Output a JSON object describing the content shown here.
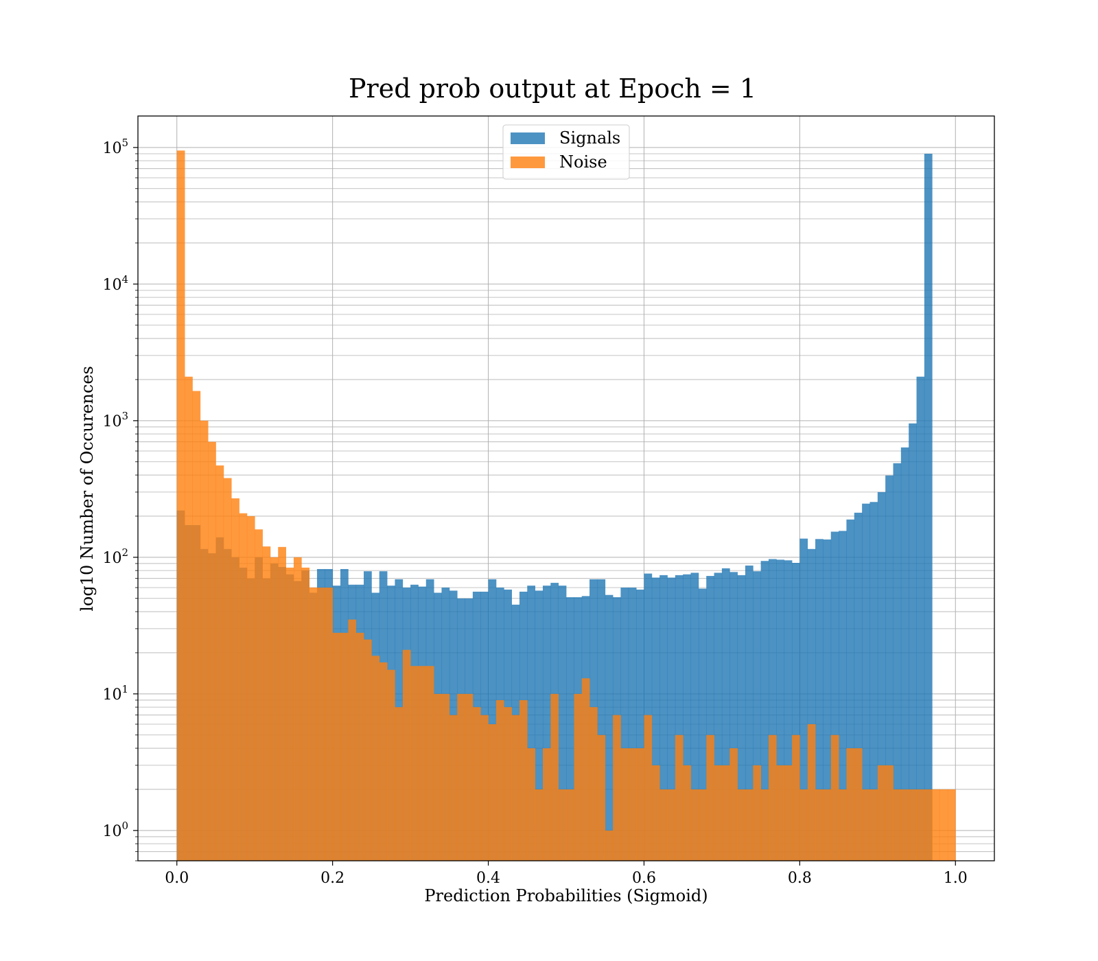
{
  "chart_data": {
    "type": "bar",
    "title": "Pred prob output at Epoch = 1",
    "xlabel": "Prediction Probabilities (Sigmoid)",
    "ylabel": "log10 Number of Occurences",
    "xscale": "linear",
    "yscale": "log",
    "xlim": [
      -0.05,
      1.05
    ],
    "ylim": [
      0.6,
      170000
    ],
    "xticks": [
      0.0,
      0.2,
      0.4,
      0.6,
      0.8,
      1.0
    ],
    "xtick_labels": [
      "0.0",
      "0.2",
      "0.4",
      "0.6",
      "0.8",
      "1.0"
    ],
    "yticks": [
      1,
      10,
      100,
      1000,
      10000,
      100000
    ],
    "ytick_labels": [
      {
        "base": "10",
        "exp": "0"
      },
      {
        "base": "10",
        "exp": "1"
      },
      {
        "base": "10",
        "exp": "2"
      },
      {
        "base": "10",
        "exp": "3"
      },
      {
        "base": "10",
        "exp": "4"
      },
      {
        "base": "10",
        "exp": "5"
      }
    ],
    "grid": true,
    "legend_position": "upper-center",
    "bins": {
      "start": 0.0,
      "end": 1.0,
      "count": 100
    },
    "series": [
      {
        "name": "Signals",
        "color": "#1f77b4",
        "opacity": 0.8,
        "values": [
          220,
          172,
          172,
          115,
          107,
          140,
          115,
          100,
          84,
          70,
          100,
          70,
          90,
          85,
          75,
          67,
          80,
          55,
          82,
          82,
          62,
          82,
          63,
          63,
          79,
          55,
          79,
          62,
          69,
          60,
          63,
          61,
          69,
          55,
          60,
          57,
          50,
          50,
          56,
          56,
          69,
          60,
          58,
          45,
          56,
          62,
          57,
          62,
          65,
          62,
          51,
          51,
          52,
          69,
          69,
          53,
          51,
          60,
          60,
          58,
          76,
          71,
          74,
          71,
          74,
          75,
          77,
          59,
          73,
          77,
          83,
          78,
          74,
          87,
          79,
          94,
          97,
          96,
          95,
          91,
          137,
          115,
          136,
          135,
          154,
          156,
          189,
          212,
          247,
          254,
          300,
          397,
          488,
          637,
          955,
          2100,
          90000,
          0,
          0,
          0
        ]
      },
      {
        "name": "Noise",
        "color": "#ff7f0e",
        "opacity": 0.8,
        "values": [
          95000,
          2100,
          1650,
          1000,
          700,
          470,
          380,
          270,
          210,
          200,
          160,
          120,
          100,
          119,
          84,
          100,
          84,
          60,
          60,
          60,
          28,
          28,
          35,
          28,
          25,
          19,
          17,
          15,
          8,
          21,
          16,
          16,
          16,
          10,
          10,
          7,
          10,
          10,
          8,
          7,
          6,
          9,
          8,
          7,
          9,
          4,
          2,
          4,
          10,
          2,
          2,
          10,
          13,
          8,
          5,
          1,
          7,
          4,
          4,
          4,
          7,
          3,
          2,
          2,
          5,
          3,
          2,
          2,
          5,
          3,
          3,
          4,
          2,
          2,
          3,
          2,
          5,
          3,
          3,
          5,
          2,
          6,
          2,
          2,
          5,
          2,
          4,
          4,
          2,
          2,
          3,
          3,
          2,
          2,
          2,
          2,
          2,
          2,
          2,
          2
        ]
      }
    ]
  }
}
